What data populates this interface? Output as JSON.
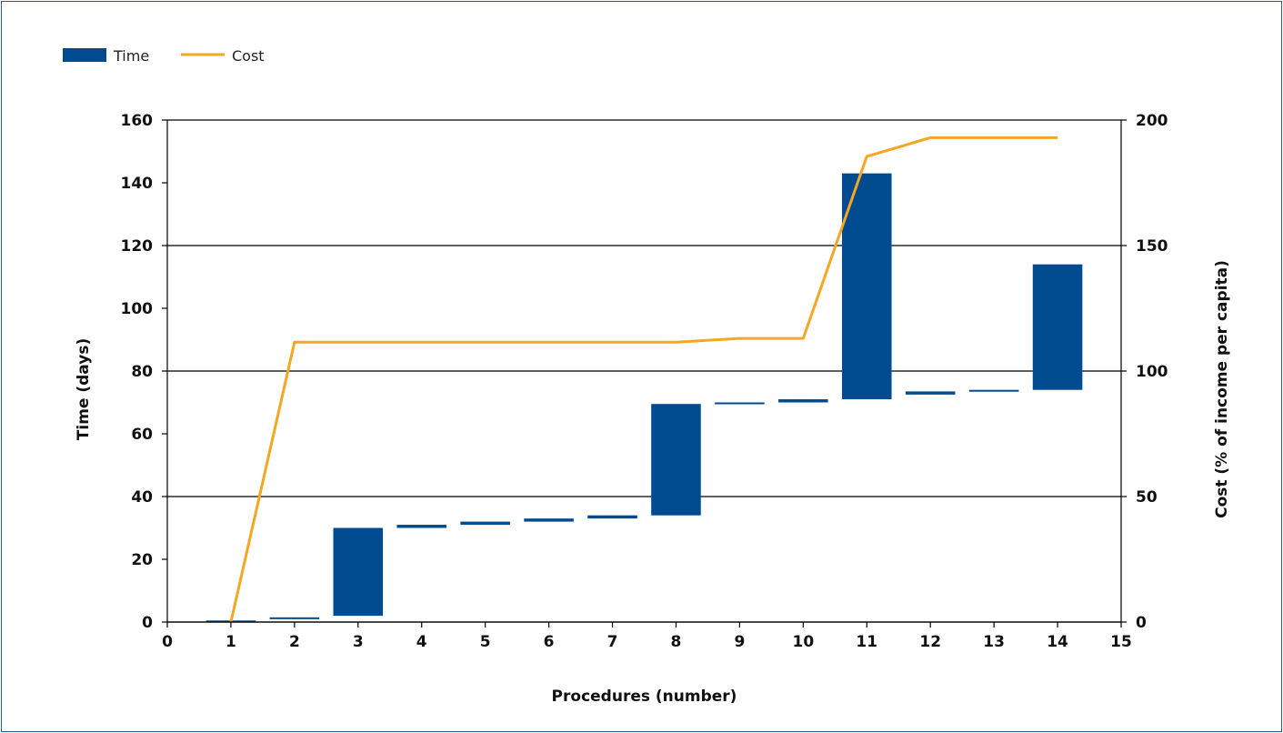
{
  "chart_data": {
    "type": "bar",
    "subtype": "waterfall-with-line",
    "title": "",
    "legend": {
      "position": "top-left",
      "items": [
        {
          "label": "Time",
          "kind": "bar",
          "color": "#004a8f"
        },
        {
          "label": "Cost",
          "kind": "line",
          "color": "#f5a623"
        }
      ]
    },
    "xlabel": "Procedures (number)",
    "ylabel_left": "Time (days)",
    "ylabel_right": "Cost (% of income per capita)",
    "xlim": [
      0,
      15
    ],
    "xticks": [
      "0",
      "1",
      "2",
      "3",
      "4",
      "5",
      "6",
      "7",
      "8",
      "9",
      "10",
      "11",
      "12",
      "13",
      "14",
      "15"
    ],
    "ylim_left": [
      0,
      160
    ],
    "yticks_left": [
      "0",
      "20",
      "40",
      "60",
      "80",
      "100",
      "120",
      "140",
      "160"
    ],
    "ylim_right": [
      0,
      200
    ],
    "yticks_right": [
      "0",
      "50",
      "100",
      "150",
      "200"
    ],
    "grid": "horizontal",
    "time_series": {
      "name": "Time",
      "color": "#004a8f",
      "bars": [
        {
          "x": 1,
          "start": 0,
          "end": 0.5
        },
        {
          "x": 2,
          "start": 1,
          "end": 1.5
        },
        {
          "x": 3,
          "start": 2,
          "end": 30
        },
        {
          "x": 4,
          "start": 30,
          "end": 31
        },
        {
          "x": 5,
          "start": 31,
          "end": 32
        },
        {
          "x": 6,
          "start": 32,
          "end": 33
        },
        {
          "x": 7,
          "start": 33,
          "end": 34
        },
        {
          "x": 8,
          "start": 34,
          "end": 69.5
        },
        {
          "x": 9,
          "start": 69.5,
          "end": 70
        },
        {
          "x": 10,
          "start": 70,
          "end": 71
        },
        {
          "x": 11,
          "start": 71,
          "end": 143
        },
        {
          "x": 12,
          "start": 72.5,
          "end": 73.5
        },
        {
          "x": 13,
          "start": 73.5,
          "end": 74
        },
        {
          "x": 14,
          "start": 74,
          "end": 114
        }
      ]
    },
    "cost_series": {
      "name": "Cost",
      "color": "#f5a623",
      "x": [
        1,
        2,
        3,
        4,
        5,
        6,
        7,
        8,
        9,
        10,
        11,
        12,
        13,
        14
      ],
      "values": [
        0,
        111.5,
        111.5,
        111.5,
        111.5,
        111.5,
        111.5,
        111.5,
        113,
        113,
        185.5,
        193,
        193,
        193
      ]
    }
  }
}
